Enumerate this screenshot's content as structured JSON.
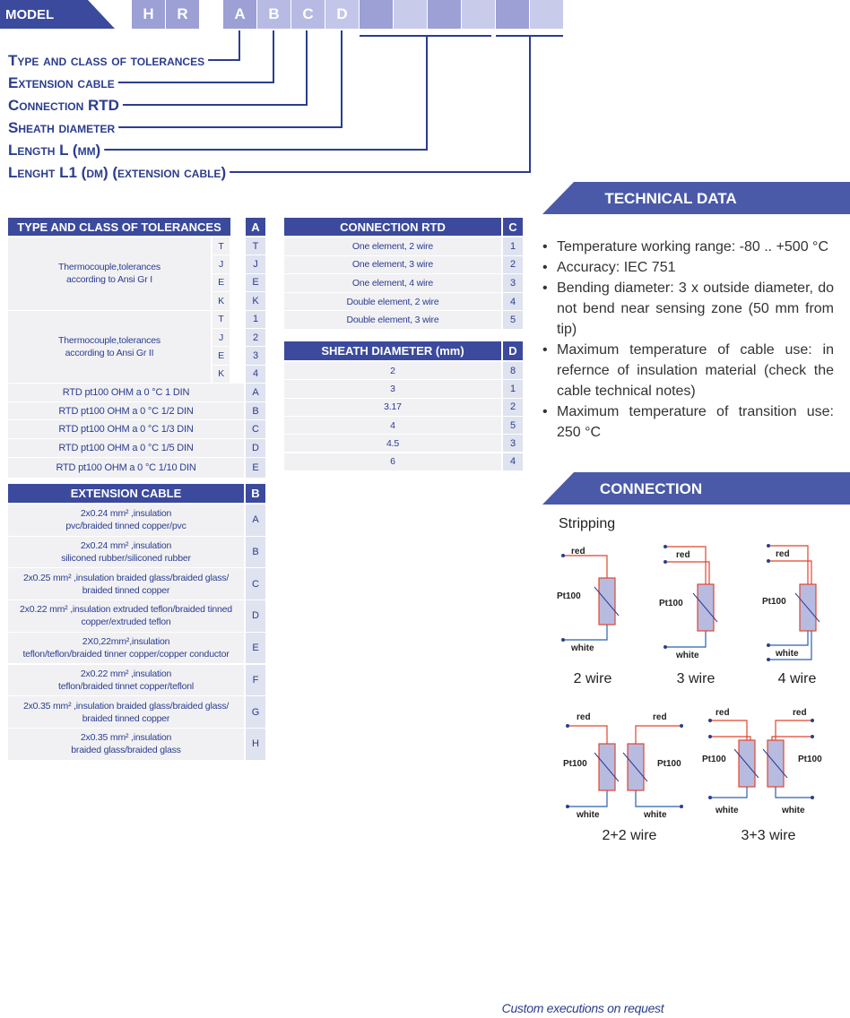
{
  "model": {
    "label": "MODEL",
    "codes": [
      "H",
      "R",
      "A",
      "B",
      "C",
      "D"
    ]
  },
  "legend": [
    "Type and class of tolerances",
    "Extension cable",
    "Connection RTD",
    "Sheath diameter",
    "Length L (mm)",
    "Lenght L1 (dm) (extension cable)"
  ],
  "tolerances": {
    "header": "TYPE AND CLASS OF TOLERANCES",
    "code_header": "A",
    "groups": [
      {
        "description": "Thermocouple,tolerances\naccording to Ansi Gr I",
        "rows": [
          {
            "type": "T",
            "code": "T"
          },
          {
            "type": "J",
            "code": "J"
          },
          {
            "type": "E",
            "code": "E"
          },
          {
            "type": "K",
            "code": "K"
          }
        ]
      },
      {
        "description": "Thermocouple,tolerances\naccording to Ansi Gr II",
        "rows": [
          {
            "type": "T",
            "code": "1"
          },
          {
            "type": "J",
            "code": "2"
          },
          {
            "type": "E",
            "code": "3"
          },
          {
            "type": "K",
            "code": "4"
          }
        ]
      }
    ],
    "rtd_rows": [
      {
        "description": "RTD pt100 OHM a 0 °C 1 DIN",
        "code": "A"
      },
      {
        "description": "RTD pt100 OHM a 0 °C 1/2 DIN",
        "code": "B"
      },
      {
        "description": "RTD pt100 OHM a 0 °C 1/3 DIN",
        "code": "C"
      },
      {
        "description": "RTD pt100 OHM a 0 °C 1/5 DIN",
        "code": "D"
      },
      {
        "description": "RTD pt100 OHM a 0 °C 1/10 DIN",
        "code": "E"
      }
    ]
  },
  "connection_rtd": {
    "header": "CONNECTION RTD",
    "code_header": "C",
    "rows": [
      {
        "description": "One element, 2 wire",
        "code": "1"
      },
      {
        "description": "One element, 3 wire",
        "code": "2"
      },
      {
        "description": "One element, 4 wire",
        "code": "3"
      },
      {
        "description": "Double element, 2 wire",
        "code": "4"
      },
      {
        "description": "Double element, 3 wire",
        "code": "5"
      }
    ]
  },
  "sheath_diameter": {
    "header": "SHEATH DIAMETER (mm)",
    "code_header": "D",
    "rows": [
      {
        "description": "2",
        "code": "8"
      },
      {
        "description": "3",
        "code": "1"
      },
      {
        "description": "3.17",
        "code": "2"
      },
      {
        "description": "4",
        "code": "5"
      },
      {
        "description": "4.5",
        "code": "3"
      },
      {
        "description": "6",
        "code": "4"
      }
    ]
  },
  "extension_cable": {
    "header": "EXTENSION CABLE",
    "code_header": "B",
    "rows": [
      {
        "description": "2x0.24 mm² ,insulation\npvc/braided tinned copper/pvc",
        "code": "A"
      },
      {
        "description": "2x0.24 mm² ,insulation\nsiliconed rubber/siliconed rubber",
        "code": "B"
      },
      {
        "description": "2x0.25 mm² ,insulation braided glass/braided glass/\nbraided tinned copper",
        "code": "C"
      },
      {
        "description": "2x0.22 mm² ,insulation extruded teflon/braided tinned\ncopper/extruded teflon",
        "code": "D"
      },
      {
        "description": "2X0,22mm²,insulation\nteflon/teflon/braided tinner copper/copper conductor",
        "code": "E"
      },
      {
        "description": "2x0.22 mm² ,insulation\nteflon/braided tinnet copper/teflonl",
        "code": "F"
      },
      {
        "description": "2x0.35 mm² ,insulation braided glass/braided glass/\nbraided tinned copper",
        "code": "G"
      },
      {
        "description": "2x0.35 mm² ,insulation\nbraided glass/braided glass",
        "code": "H"
      }
    ]
  },
  "technical_data": {
    "title": "TECHNICAL DATA",
    "items": [
      "Temperature working range: -80 .. +500 °C",
      "Accuracy: IEC 751",
      "Bending diameter: 3 x outside diameter, do not bend near sensing zone (50 mm from tip)",
      "Maximum temperature of cable use: in refernce of insulation material (check the cable technical notes)",
      "Maximum temperature of transition use: 250 °C"
    ]
  },
  "connection": {
    "title": "CONNECTION",
    "subtitle": "Stripping",
    "diagrams": [
      {
        "caption": "2 wire",
        "sensors": [
          {
            "positive": "red",
            "negative": "white",
            "element": "Pt100"
          }
        ]
      },
      {
        "caption": "3 wire",
        "sensors": [
          {
            "positive": "red",
            "negative": "white",
            "element": "Pt100"
          }
        ]
      },
      {
        "caption": "4 wire",
        "sensors": [
          {
            "positive": "red",
            "negative": "white",
            "element": "Pt100"
          }
        ]
      },
      {
        "caption": "2+2 wire",
        "sensors": [
          {
            "positive": "red",
            "negative": "white",
            "element": "Pt100"
          },
          {
            "positive": "red",
            "negative": "white",
            "element": "Pt100"
          }
        ]
      },
      {
        "caption": "3+3 wire",
        "sensors": [
          {
            "positive": "red",
            "negative": "white",
            "element": "Pt100"
          },
          {
            "positive": "red",
            "negative": "white",
            "element": "Pt100"
          }
        ]
      }
    ]
  },
  "footer": "Custom executions on request"
}
